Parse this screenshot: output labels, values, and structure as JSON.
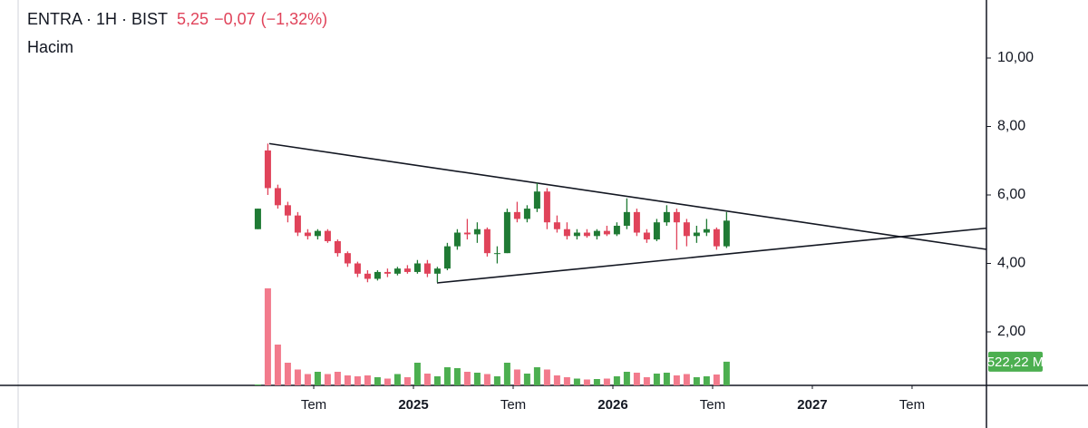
{
  "chart_data": {
    "type": "candlestick",
    "title": "ENTRA · 1H · BIST",
    "last": "5,25",
    "change": "−0,07",
    "change_pct": "(−1,32%)",
    "subtitle": "Hacim",
    "x": [
      2024.22,
      2024.27,
      2024.32,
      2024.37,
      2024.42,
      2024.47,
      2024.52,
      2024.57,
      2024.62,
      2024.67,
      2024.72,
      2024.77,
      2024.82,
      2024.87,
      2024.92,
      2024.97,
      2025.02,
      2025.07,
      2025.12,
      2025.17,
      2025.22,
      2025.27,
      2025.32,
      2025.37,
      2025.42,
      2025.47,
      2025.52,
      2025.57,
      2025.62,
      2025.67,
      2025.72,
      2025.77,
      2025.82,
      2025.87,
      2025.92,
      2025.97,
      2026.02,
      2026.07,
      2026.12,
      2026.17,
      2026.22,
      2026.27,
      2026.32,
      2026.37,
      2026.42,
      2026.47,
      2026.52,
      2026.57
    ],
    "open": [
      5.0,
      7.3,
      6.2,
      5.7,
      5.4,
      4.9,
      4.8,
      4.95,
      4.65,
      4.3,
      4.0,
      3.7,
      3.55,
      3.75,
      3.7,
      3.85,
      3.75,
      4.0,
      3.7,
      3.85,
      4.5,
      4.9,
      4.85,
      5.0,
      4.3,
      4.3,
      5.5,
      5.3,
      5.6,
      6.1,
      5.2,
      5.0,
      4.8,
      4.9,
      4.8,
      4.95,
      4.85,
      5.1,
      5.5,
      4.9,
      4.7,
      5.2,
      5.5,
      5.2,
      4.8,
      4.9,
      5.0,
      4.5
    ],
    "high": [
      5.6,
      7.5,
      6.3,
      5.8,
      5.5,
      5.0,
      5.0,
      5.0,
      4.7,
      4.35,
      4.05,
      3.8,
      3.8,
      3.85,
      3.9,
      3.95,
      4.1,
      4.1,
      3.9,
      4.6,
      5.0,
      5.3,
      5.2,
      5.05,
      4.5,
      5.6,
      5.8,
      5.7,
      6.35,
      6.2,
      5.4,
      5.2,
      5.0,
      5.0,
      5.0,
      5.1,
      5.2,
      5.9,
      5.6,
      5.0,
      5.3,
      5.7,
      5.6,
      5.3,
      5.1,
      5.3,
      5.05,
      5.5
    ],
    "low": [
      5.0,
      6.0,
      5.6,
      5.2,
      4.8,
      4.7,
      4.7,
      4.6,
      4.2,
      3.9,
      3.6,
      3.45,
      3.5,
      3.6,
      3.65,
      3.7,
      3.7,
      3.6,
      3.45,
      3.8,
      4.4,
      4.7,
      4.6,
      4.2,
      4.0,
      4.3,
      5.2,
      5.2,
      5.5,
      5.0,
      4.9,
      4.7,
      4.7,
      4.75,
      4.7,
      4.8,
      4.8,
      5.0,
      4.8,
      4.6,
      4.65,
      5.1,
      4.4,
      4.5,
      4.6,
      4.8,
      4.4,
      4.45
    ],
    "close": [
      5.6,
      6.2,
      5.7,
      5.4,
      4.9,
      4.8,
      4.95,
      4.65,
      4.3,
      4.0,
      3.7,
      3.55,
      3.75,
      3.7,
      3.85,
      3.75,
      4.0,
      3.7,
      3.85,
      4.5,
      4.9,
      4.85,
      5.0,
      4.3,
      4.3,
      5.5,
      5.3,
      5.6,
      6.1,
      5.2,
      5.0,
      4.8,
      4.9,
      4.8,
      4.95,
      4.85,
      5.1,
      5.5,
      4.9,
      4.7,
      5.2,
      5.5,
      5.2,
      4.8,
      4.9,
      5.0,
      4.5,
      5.25
    ],
    "volume": [
      20,
      2140,
      900,
      500,
      350,
      250,
      300,
      250,
      300,
      220,
      200,
      220,
      180,
      150,
      250,
      180,
      500,
      260,
      200,
      400,
      380,
      300,
      280,
      250,
      200,
      500,
      350,
      260,
      400,
      350,
      220,
      180,
      150,
      130,
      140,
      150,
      200,
      300,
      280,
      180,
      260,
      280,
      220,
      250,
      180,
      200,
      240,
      522.22
    ],
    "up_color": "#1f7a34",
    "down_color": "#e0435a",
    "volume_up_color": "#4caf50",
    "volume_down_color": "#f27a8c",
    "xlim": [
      2022.927,
      2027.873
    ],
    "xticks": [
      {
        "value": 2024.5,
        "label": "Tem"
      },
      2025,
      {
        "value": 2025.5,
        "label": "Tem"
      },
      2026,
      {
        "value": 2026.5,
        "label": "Tem"
      },
      2027,
      {
        "value": 2027.5,
        "label": "Tem"
      }
    ],
    "ylim": [
      0.437,
      11.695
    ],
    "yticks": [
      {
        "value": 2,
        "label": "2,00"
      },
      {
        "value": 4,
        "label": "4,00"
      },
      {
        "value": 6,
        "label": "6,00"
      },
      {
        "value": 8,
        "label": "8,00"
      },
      {
        "value": 10,
        "label": "10,00"
      }
    ],
    "y2lim": [
      0,
      8500
    ],
    "y2ticks": [
      {
        "value": 522.22,
        "label": "522,22 M"
      }
    ],
    "trendlines": [
      {
        "x": [
          2024.277,
          2027.873
        ],
        "y": [
          7.5,
          4.41
        ]
      },
      {
        "x": [
          2025.118,
          2027.873
        ],
        "y": [
          3.43,
          5.03
        ]
      }
    ]
  }
}
